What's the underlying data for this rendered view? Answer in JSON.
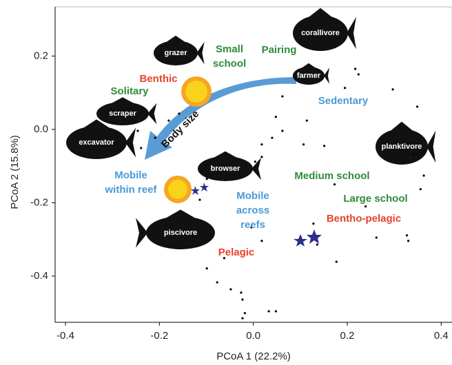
{
  "chart_data": {
    "type": "scatter",
    "xlabel": "PCoA 1 (22.2%)",
    "ylabel": "PCoA 2 (15.8%)",
    "xlim": [
      -0.422,
      0.423
    ],
    "ylim": [
      -0.526,
      0.334
    ],
    "xticks": [
      -0.4,
      -0.2,
      {
        "value": 0,
        "label": "0.0"
      },
      0.2,
      0.4
    ],
    "yticks": [
      0.2,
      {
        "value": 0,
        "label": "0.0"
      },
      -0.2,
      -0.4
    ],
    "color": "#000000",
    "x": [
      0.217,
      0.224,
      0.195,
      0.297,
      0.349,
      0.062,
      0.048,
      0.062,
      0.04,
      0.018,
      0.018,
      0.004,
      0.107,
      0.151,
      0.114,
      0.341,
      0.363,
      0.356,
      0.173,
      0.239,
      0.262,
      0.327,
      0.33,
      0.136,
      0.177,
      0.128,
      -0.114,
      -0.239,
      -0.209,
      -0.18,
      -0.246,
      -0.158,
      -0.099,
      -0.077,
      -0.048,
      -0.026,
      -0.023,
      -0.018,
      -0.023,
      0.033,
      0.048,
      -0.099,
      -0.062,
      -0.004,
      0.018
    ],
    "y": [
      0.165,
      0.15,
      0.113,
      0.109,
      0.062,
      0.09,
      0.034,
      -0.004,
      -0.023,
      -0.041,
      -0.075,
      -0.088,
      -0.041,
      -0.045,
      0.024,
      -0.069,
      -0.126,
      -0.163,
      -0.15,
      -0.21,
      -0.295,
      -0.289,
      -0.304,
      -0.314,
      -0.361,
      -0.257,
      -0.192,
      -0.051,
      -0.023,
      0.024,
      -0.004,
      0.043,
      -0.135,
      -0.417,
      -0.436,
      -0.445,
      -0.464,
      -0.501,
      -0.515,
      -0.496,
      -0.496,
      -0.379,
      -0.351,
      -0.267,
      -0.304
    ],
    "fish_labels": [
      "grazer",
      "corallivore",
      "farmer",
      "scraper",
      "excavator",
      "browser",
      "planktivore",
      "piscivore"
    ],
    "arrow_label": "Body size",
    "annotations": [
      {
        "lines": [
          "Small",
          "school"
        ],
        "color": "#2e8b3a"
      },
      {
        "lines": [
          "Pairing"
        ],
        "color": "#2e8b3a"
      },
      {
        "lines": [
          "Benthic"
        ],
        "color": "#e8402a"
      },
      {
        "lines": [
          "Solitary"
        ],
        "color": "#2e8b3a"
      },
      {
        "lines": [
          "Sedentary"
        ],
        "color": "#4a9ad6"
      },
      {
        "lines": [
          "Mobile",
          "within reef"
        ],
        "color": "#4a9ad6"
      },
      {
        "lines": [
          "Medium school"
        ],
        "color": "#2e8b3a"
      },
      {
        "lines": [
          "Large school"
        ],
        "color": "#2e8b3a"
      },
      {
        "lines": [
          "Mobile",
          "across",
          "reefs"
        ],
        "color": "#4a9ad6"
      },
      {
        "lines": [
          "Bentho-pelagic"
        ],
        "color": "#e8402a"
      },
      {
        "lines": [
          "Pelagic"
        ],
        "color": "#e8402a"
      }
    ]
  }
}
